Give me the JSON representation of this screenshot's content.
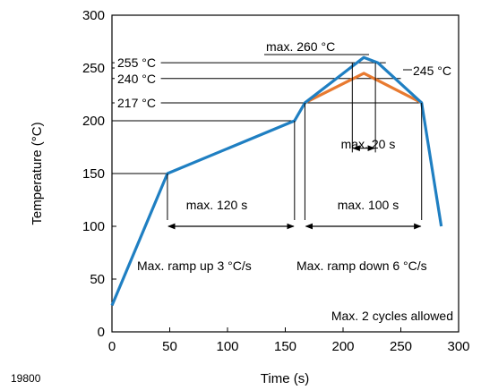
{
  "figure_id": "19800",
  "chart_data": {
    "type": "line",
    "xlabel": "Time (s)",
    "ylabel": "Temperature (°C)",
    "xlim": [
      0,
      300
    ],
    "ylim": [
      0,
      300
    ],
    "xticks": [
      0,
      50,
      100,
      150,
      200,
      250,
      300
    ],
    "yticks": [
      0,
      50,
      100,
      150,
      200,
      250,
      300
    ],
    "grid": false,
    "series": [
      {
        "color": "#1f7fc2",
        "x": [
          0,
          48,
          158,
          167,
          218,
          230,
          268,
          285
        ],
        "y": [
          25,
          150,
          200,
          217,
          260,
          255,
          217,
          100
        ]
      },
      {
        "color": "#e87a30",
        "x": [
          167,
          218,
          268
        ],
        "y": [
          217,
          245,
          217
        ]
      }
    ],
    "reference_lines": [
      {
        "label": "255 °C",
        "y": 255,
        "x_end": 237
      },
      {
        "label": "240 °C",
        "y": 240,
        "x_end": 250
      },
      {
        "label": "217 °C",
        "y": 217,
        "x_end": 268
      },
      {
        "label": "",
        "y": 200,
        "x_end": 158
      },
      {
        "label": "",
        "y": 150,
        "x_end": 48
      }
    ],
    "annotations": {
      "peak_label": "max. 260 °C",
      "peak_245_label": "245 °C",
      "dwell_120": "max. 120 s",
      "dwell_100": "max. 100 s",
      "dwell_20": "max. 20 s",
      "ramp_up": "Max. ramp up 3 °C/s",
      "ramp_down": "Max. ramp down 6 °C/s",
      "cycles": "Max. 2 cycles allowed"
    },
    "intervals": {
      "dwell_120": [
        48,
        158,
        100
      ],
      "dwell_100": [
        167,
        268,
        100
      ],
      "dwell_20": [
        208,
        228,
        174
      ]
    }
  }
}
